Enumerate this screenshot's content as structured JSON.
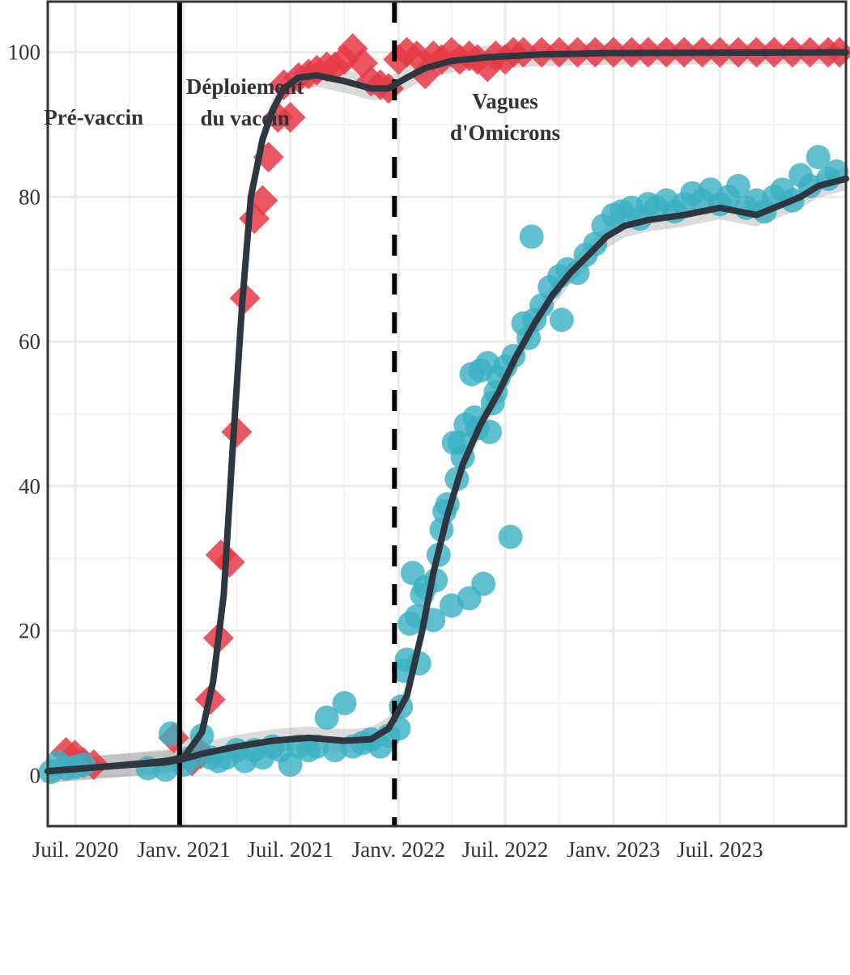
{
  "chart_data": {
    "type": "scatter",
    "title": "",
    "xlabel": "",
    "ylabel": "",
    "x_range": [
      "2020-05-15",
      "2024-01-31"
    ],
    "ylim": [
      -7,
      107
    ],
    "grid": true,
    "legend": "none",
    "y_ticks": [
      0,
      20,
      40,
      60,
      80,
      100
    ],
    "x_ticks": [
      {
        "date": "2020-07-01",
        "label": "Juil. 2020"
      },
      {
        "date": "2021-01-01",
        "label": "Janv. 2021"
      },
      {
        "date": "2021-07-01",
        "label": "Juil. 2021"
      },
      {
        "date": "2022-01-01",
        "label": "Janv. 2022"
      },
      {
        "date": "2022-07-01",
        "label": "Juil. 2022"
      },
      {
        "date": "2023-01-01",
        "label": "Janv. 2023"
      },
      {
        "date": "2023-07-01",
        "label": "Juil. 2023"
      }
    ],
    "vertical_lines": [
      {
        "date": "2020-12-25",
        "style": "solid"
      },
      {
        "date": "2021-12-25",
        "style": "dashed"
      }
    ],
    "phase_labels": [
      {
        "lines": [
          "Pré-vaccin"
        ],
        "date": "2020-08-01",
        "y": 90
      },
      {
        "lines": [
          "Déploiement",
          "du vaccin"
        ],
        "date": "2021-04-15",
        "y": 92
      },
      {
        "lines": [
          "Vagues",
          "d'Omicrons"
        ],
        "date": "2022-07-01",
        "y": 90
      }
    ],
    "series": [
      {
        "marker": "diamond",
        "color": "#e63946",
        "points": [
          [
            "2020-06-15",
            3.2
          ],
          [
            "2020-06-30",
            2.8
          ],
          [
            "2020-07-15",
            1.8
          ],
          [
            "2020-08-01",
            1.5
          ],
          [
            "2020-12-15",
            5.2
          ],
          [
            "2021-01-15",
            2.0
          ],
          [
            "2021-01-30",
            3.0
          ],
          [
            "2021-02-15",
            10.5
          ],
          [
            "2021-03-01",
            19.0
          ],
          [
            "2021-03-05",
            30.5
          ],
          [
            "2021-03-20",
            29.5
          ],
          [
            "2021-04-01",
            47.5
          ],
          [
            "2021-04-15",
            66.0
          ],
          [
            "2021-05-01",
            77.0
          ],
          [
            "2021-05-15",
            79.5
          ],
          [
            "2021-05-25",
            85.5
          ],
          [
            "2021-06-10",
            91.0
          ],
          [
            "2021-06-20",
            95.5
          ],
          [
            "2021-07-01",
            91.0
          ],
          [
            "2021-07-15",
            96.5
          ],
          [
            "2021-08-01",
            97.0
          ],
          [
            "2021-08-15",
            97.5
          ],
          [
            "2021-09-01",
            98.0
          ],
          [
            "2021-09-15",
            98.0
          ],
          [
            "2021-10-01",
            99.0
          ],
          [
            "2021-10-15",
            100.5
          ],
          [
            "2021-11-01",
            98.5
          ],
          [
            "2021-11-15",
            96.0
          ],
          [
            "2021-12-01",
            95.5
          ],
          [
            "2021-12-15",
            95.0
          ],
          [
            "2022-01-01",
            99.0
          ],
          [
            "2022-01-15",
            100.0
          ],
          [
            "2022-02-01",
            99.5
          ],
          [
            "2022-02-15",
            97.0
          ],
          [
            "2022-03-01",
            99.5
          ],
          [
            "2022-03-15",
            99.0
          ],
          [
            "2022-04-01",
            100.0
          ],
          [
            "2022-04-15",
            99.0
          ],
          [
            "2022-05-01",
            99.5
          ],
          [
            "2022-05-15",
            99.0
          ],
          [
            "2022-06-01",
            98.0
          ],
          [
            "2022-06-15",
            99.5
          ],
          [
            "2022-07-01",
            99.0
          ],
          [
            "2022-07-15",
            100.0
          ],
          [
            "2022-08-01",
            100.0
          ],
          [
            "2022-09-01",
            100.0
          ],
          [
            "2022-10-01",
            100.0
          ],
          [
            "2022-11-01",
            100.0
          ],
          [
            "2022-12-01",
            100.0
          ],
          [
            "2023-01-01",
            100.0
          ],
          [
            "2023-02-01",
            100.0
          ],
          [
            "2023-03-01",
            100.0
          ],
          [
            "2023-04-01",
            100.0
          ],
          [
            "2023-05-01",
            100.0
          ],
          [
            "2023-06-01",
            100.0
          ],
          [
            "2023-07-01",
            100.0
          ],
          [
            "2023-08-01",
            100.0
          ],
          [
            "2023-09-01",
            100.0
          ],
          [
            "2023-10-01",
            100.0
          ],
          [
            "2023-11-01",
            100.0
          ],
          [
            "2023-12-01",
            100.0
          ],
          [
            "2024-01-01",
            100.0
          ],
          [
            "2024-01-20",
            100.0
          ]
        ],
        "trend": [
          [
            "2020-05-15",
            0.6
          ],
          [
            "2020-09-01",
            1.3
          ],
          [
            "2020-12-01",
            2.0
          ],
          [
            "2021-01-01",
            2.5
          ],
          [
            "2021-02-01",
            6.0
          ],
          [
            "2021-02-20",
            13.0
          ],
          [
            "2021-03-10",
            25.0
          ],
          [
            "2021-03-25",
            45.0
          ],
          [
            "2021-04-10",
            65.0
          ],
          [
            "2021-04-25",
            80.0
          ],
          [
            "2021-05-15",
            88.0
          ],
          [
            "2021-06-01",
            92.0
          ],
          [
            "2021-06-20",
            95.0
          ],
          [
            "2021-07-15",
            96.5
          ],
          [
            "2021-08-15",
            96.8
          ],
          [
            "2021-10-01",
            96.0
          ],
          [
            "2021-11-15",
            95.0
          ],
          [
            "2021-12-15",
            95.0
          ],
          [
            "2022-01-15",
            96.5
          ],
          [
            "2022-02-15",
            97.8
          ],
          [
            "2022-04-01",
            98.8
          ],
          [
            "2022-06-01",
            99.3
          ],
          [
            "2022-09-01",
            99.7
          ],
          [
            "2023-01-01",
            99.9
          ],
          [
            "2024-01-31",
            100.0
          ]
        ]
      },
      {
        "marker": "circle",
        "color": "#3ab0c3",
        "points": [
          [
            "2020-05-20",
            0.5
          ],
          [
            "2020-06-01",
            1.8
          ],
          [
            "2020-06-15",
            1.0
          ],
          [
            "2020-07-01",
            1.2
          ],
          [
            "2020-07-15",
            1.5
          ],
          [
            "2020-11-01",
            1.0
          ],
          [
            "2020-12-01",
            0.8
          ],
          [
            "2020-12-10",
            5.8
          ],
          [
            "2021-01-01",
            1.5
          ],
          [
            "2021-01-15",
            2.5
          ],
          [
            "2021-02-01",
            5.5
          ],
          [
            "2021-02-15",
            2.5
          ],
          [
            "2021-03-01",
            2.0
          ],
          [
            "2021-03-15",
            2.5
          ],
          [
            "2021-04-01",
            3.5
          ],
          [
            "2021-04-15",
            2.0
          ],
          [
            "2021-05-01",
            3.5
          ],
          [
            "2021-05-15",
            2.5
          ],
          [
            "2021-06-01",
            4.0
          ],
          [
            "2021-06-15",
            3.5
          ],
          [
            "2021-07-01",
            1.5
          ],
          [
            "2021-07-15",
            4.0
          ],
          [
            "2021-08-01",
            3.5
          ],
          [
            "2021-08-15",
            4.0
          ],
          [
            "2021-09-01",
            8.0
          ],
          [
            "2021-09-15",
            3.5
          ],
          [
            "2021-10-01",
            10.0
          ],
          [
            "2021-10-15",
            4.0
          ],
          [
            "2021-11-01",
            4.5
          ],
          [
            "2021-11-15",
            5.0
          ],
          [
            "2021-12-01",
            4.0
          ],
          [
            "2021-12-15",
            5.5
          ],
          [
            "2022-01-01",
            6.5
          ],
          [
            "2022-01-05",
            9.5
          ],
          [
            "2022-01-10",
            14.5
          ],
          [
            "2022-01-15",
            16.0
          ],
          [
            "2022-01-20",
            21.0
          ],
          [
            "2022-01-25",
            28.0
          ],
          [
            "2022-02-01",
            22.0
          ],
          [
            "2022-02-05",
            15.5
          ],
          [
            "2022-02-10",
            25.0
          ],
          [
            "2022-02-15",
            26.0
          ],
          [
            "2022-03-01",
            21.5
          ],
          [
            "2022-03-05",
            27.0
          ],
          [
            "2022-03-10",
            30.5
          ],
          [
            "2022-03-15",
            34.0
          ],
          [
            "2022-03-20",
            36.5
          ],
          [
            "2022-03-25",
            37.5
          ],
          [
            "2022-04-01",
            23.5
          ],
          [
            "2022-04-05",
            46.0
          ],
          [
            "2022-04-10",
            41.0
          ],
          [
            "2022-04-15",
            46.0
          ],
          [
            "2022-04-20",
            44.0
          ],
          [
            "2022-04-25",
            48.5
          ],
          [
            "2022-05-01",
            24.5
          ],
          [
            "2022-05-05",
            55.5
          ],
          [
            "2022-05-10",
            49.5
          ],
          [
            "2022-05-15",
            48.0
          ],
          [
            "2022-05-20",
            56.0
          ],
          [
            "2022-05-25",
            26.5
          ],
          [
            "2022-06-01",
            57.0
          ],
          [
            "2022-06-05",
            47.5
          ],
          [
            "2022-06-10",
            51.5
          ],
          [
            "2022-06-15",
            53.0
          ],
          [
            "2022-06-20",
            55.0
          ],
          [
            "2022-07-01",
            56.5
          ],
          [
            "2022-07-10",
            33.0
          ],
          [
            "2022-07-15",
            58.0
          ],
          [
            "2022-08-01",
            62.5
          ],
          [
            "2022-08-10",
            60.5
          ],
          [
            "2022-08-15",
            74.5
          ],
          [
            "2022-08-20",
            63.0
          ],
          [
            "2022-09-01",
            65.0
          ],
          [
            "2022-09-15",
            67.5
          ],
          [
            "2022-10-01",
            69.0
          ],
          [
            "2022-10-05",
            63.0
          ],
          [
            "2022-10-15",
            70.0
          ],
          [
            "2022-11-01",
            69.5
          ],
          [
            "2022-11-15",
            72.0
          ],
          [
            "2022-12-01",
            73.5
          ],
          [
            "2022-12-15",
            76.0
          ],
          [
            "2023-01-01",
            77.5
          ],
          [
            "2023-01-15",
            78.0
          ],
          [
            "2023-02-01",
            78.5
          ],
          [
            "2023-02-15",
            77.0
          ],
          [
            "2023-03-01",
            79.0
          ],
          [
            "2023-03-15",
            78.5
          ],
          [
            "2023-04-01",
            79.5
          ],
          [
            "2023-04-15",
            78.0
          ],
          [
            "2023-05-01",
            79.0
          ],
          [
            "2023-05-15",
            80.5
          ],
          [
            "2023-06-01",
            79.5
          ],
          [
            "2023-06-15",
            81.0
          ],
          [
            "2023-07-01",
            79.0
          ],
          [
            "2023-07-15",
            80.0
          ],
          [
            "2023-08-01",
            81.5
          ],
          [
            "2023-08-15",
            78.5
          ],
          [
            "2023-09-01",
            79.5
          ],
          [
            "2023-09-15",
            78.0
          ],
          [
            "2023-10-01",
            80.0
          ],
          [
            "2023-10-15",
            81.0
          ],
          [
            "2023-11-01",
            79.5
          ],
          [
            "2023-11-15",
            83.0
          ],
          [
            "2023-12-01",
            81.5
          ],
          [
            "2023-12-15",
            85.5
          ],
          [
            "2024-01-01",
            82.5
          ],
          [
            "2024-01-15",
            83.5
          ]
        ],
        "trend": [
          [
            "2020-05-15",
            0.6
          ],
          [
            "2020-09-01",
            1.3
          ],
          [
            "2020-12-01",
            1.8
          ],
          [
            "2021-01-01",
            2.3
          ],
          [
            "2021-02-01",
            3.0
          ],
          [
            "2021-04-01",
            4.0
          ],
          [
            "2021-06-01",
            4.8
          ],
          [
            "2021-08-01",
            5.2
          ],
          [
            "2021-10-01",
            4.8
          ],
          [
            "2021-11-15",
            5.0
          ],
          [
            "2021-12-15",
            6.5
          ],
          [
            "2022-01-15",
            11.0
          ],
          [
            "2022-02-10",
            20.0
          ],
          [
            "2022-03-01",
            28.0
          ],
          [
            "2022-03-25",
            36.0
          ],
          [
            "2022-04-20",
            43.0
          ],
          [
            "2022-05-20",
            48.5
          ],
          [
            "2022-06-20",
            53.0
          ],
          [
            "2022-07-20",
            58.0
          ],
          [
            "2022-08-20",
            62.5
          ],
          [
            "2022-09-20",
            66.5
          ],
          [
            "2022-10-20",
            69.5
          ],
          [
            "2022-11-20",
            72.0
          ],
          [
            "2022-12-20",
            74.5
          ],
          [
            "2023-01-20",
            76.0
          ],
          [
            "2023-03-01",
            76.8
          ],
          [
            "2023-05-01",
            77.5
          ],
          [
            "2023-07-01",
            78.5
          ],
          [
            "2023-09-01",
            77.5
          ],
          [
            "2023-10-01",
            78.5
          ],
          [
            "2023-11-15",
            80.0
          ],
          [
            "2023-12-15",
            81.5
          ],
          [
            "2024-01-31",
            82.5
          ]
        ]
      }
    ]
  }
}
